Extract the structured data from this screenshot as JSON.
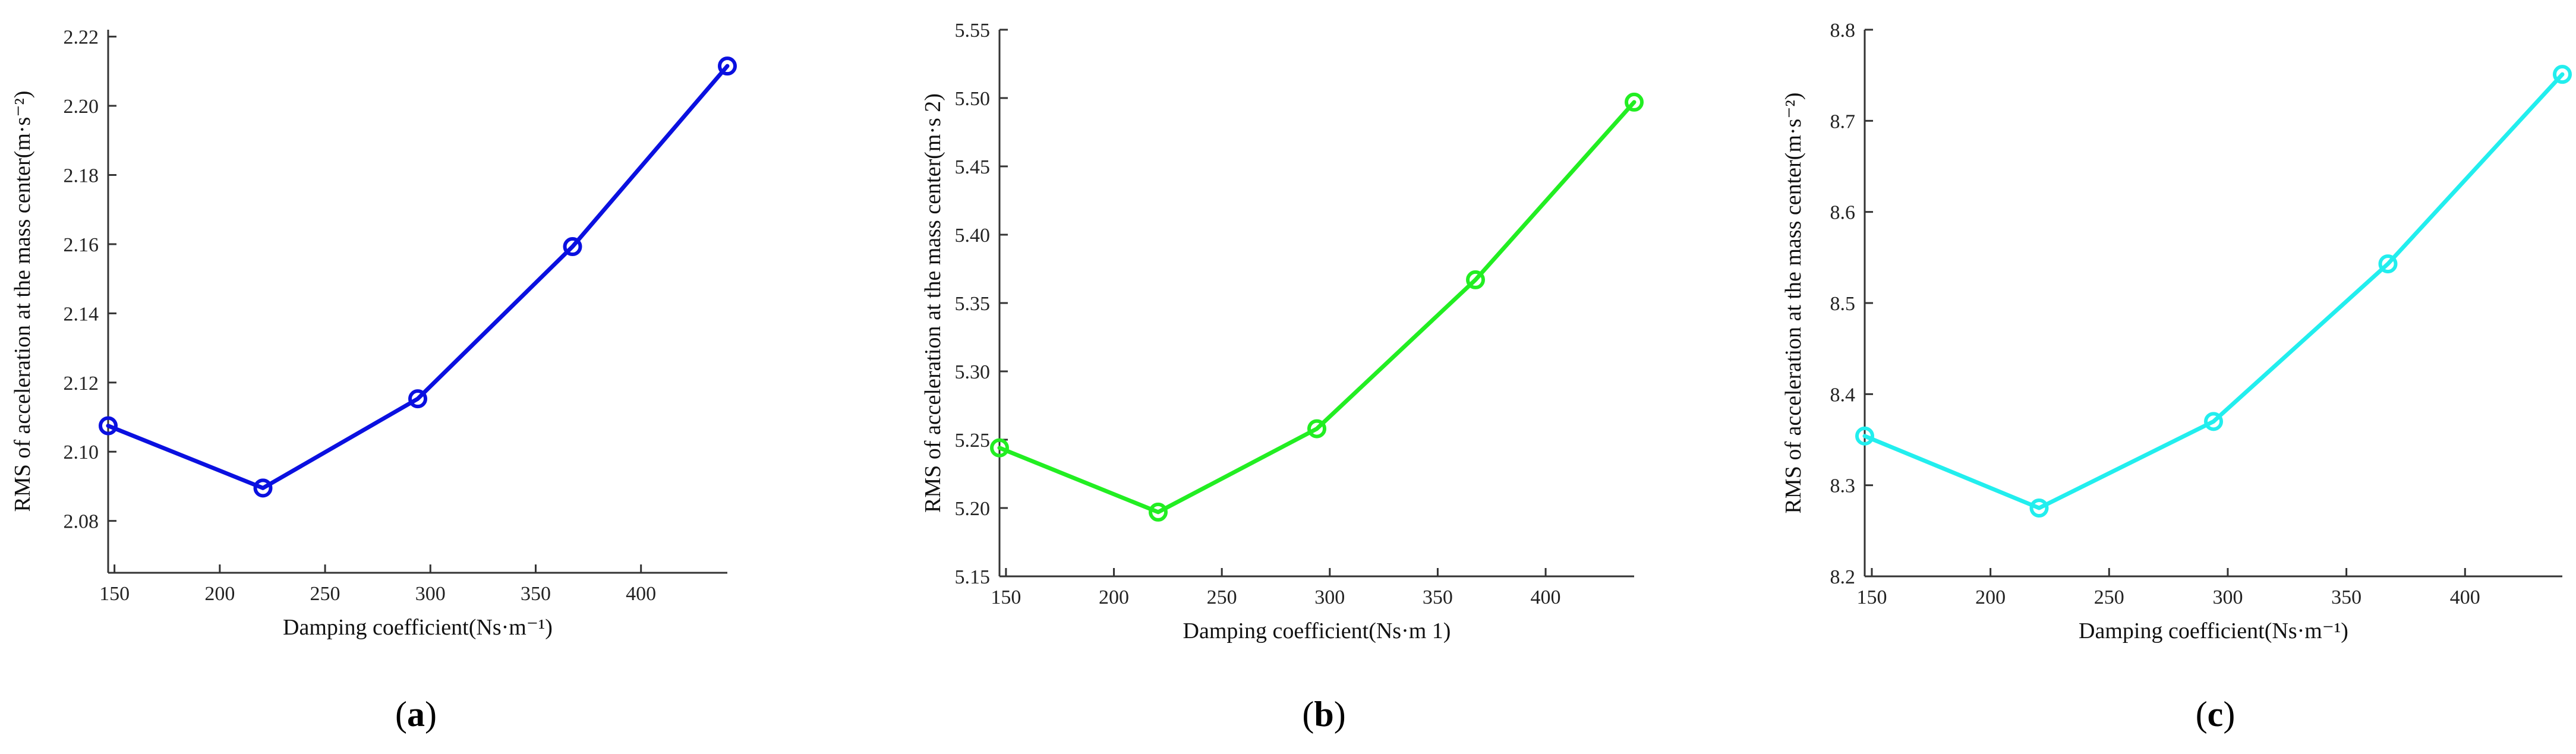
{
  "chart_data": [
    {
      "type": "line",
      "panel_label": "a",
      "xlabel": "Damping coefficient(Ns·m⁻¹)",
      "ylabel": "RMS of acceleration at the mass center(m·s⁻²)",
      "x": [
        147,
        220.5,
        294,
        367.5,
        441
      ],
      "series": [
        {
          "values": [
            2.1075,
            2.0895,
            2.1153,
            2.1593,
            2.2115
          ],
          "color": "#0a10e0"
        }
      ],
      "xlim": [
        147,
        441
      ],
      "ylim": [
        2.065,
        2.222
      ],
      "xticks": [
        150,
        200,
        250,
        300,
        350,
        400
      ],
      "yticks": [
        2.08,
        2.1,
        2.12,
        2.14,
        2.16,
        2.18,
        2.2,
        2.22
      ],
      "ytick_labels": [
        "2.08",
        "2.10",
        "2.12",
        "2.14",
        "2.16",
        "2.18",
        "2.20",
        "2.22"
      ],
      "grid": false,
      "marker": "open-circle"
    },
    {
      "type": "line",
      "panel_label": "b",
      "xlabel": "Damping coefficient(Ns·m  1)",
      "ylabel": "RMS of acceleration at the mass center(m·s 2)",
      "x": [
        147,
        220.5,
        294,
        367.5,
        441
      ],
      "series": [
        {
          "values": [
            5.244,
            5.197,
            5.258,
            5.367,
            5.497
          ],
          "color": "#22ee22"
        }
      ],
      "xlim": [
        147,
        441
      ],
      "ylim": [
        5.15,
        5.55
      ],
      "xticks": [
        150,
        200,
        250,
        300,
        350,
        400
      ],
      "yticks": [
        5.15,
        5.2,
        5.25,
        5.3,
        5.35,
        5.4,
        5.45,
        5.5,
        5.55
      ],
      "ytick_labels": [
        "5.15",
        "5.20",
        "5.25",
        "5.30",
        "5.35",
        "5.40",
        "5.45",
        "5.50",
        "5.55"
      ],
      "grid": false,
      "marker": "open-circle"
    },
    {
      "type": "line",
      "panel_label": "c",
      "xlabel": "Damping coefficient(Ns·m⁻¹)",
      "ylabel": "RMS of acceleration at the mass center(m·s⁻²)",
      "x": [
        147,
        220.5,
        294,
        367.5,
        441
      ],
      "series": [
        {
          "values": [
            8.354,
            8.275,
            8.37,
            8.543,
            8.751
          ],
          "color": "#22eeee"
        }
      ],
      "xlim": [
        147,
        441
      ],
      "ylim": [
        8.2,
        8.8
      ],
      "xticks": [
        150,
        200,
        250,
        300,
        350,
        400
      ],
      "yticks": [
        8.2,
        8.3,
        8.4,
        8.5,
        8.6,
        8.7,
        8.8
      ],
      "ytick_labels": [
        "8.2",
        "8.3",
        "8.4",
        "8.5",
        "8.6",
        "8.7",
        "8.8"
      ],
      "grid": false,
      "marker": "open-circle"
    }
  ]
}
